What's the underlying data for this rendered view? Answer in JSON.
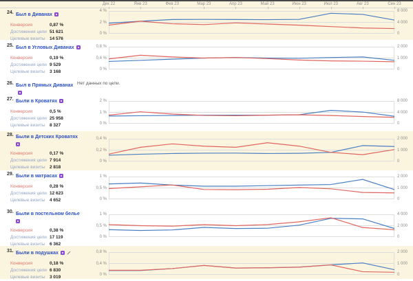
{
  "months": [
    "Дек 22",
    "Янв 23",
    "Фев 23",
    "Мар 23",
    "Апр 23",
    "Май 23",
    "Июн 23",
    "Июл 23",
    "Авг 23",
    "Сен 23"
  ],
  "metric_labels": {
    "conversion": "Конверсия",
    "reaches": "Достижения цели",
    "target_visits": "Целевые визиты"
  },
  "colors": {
    "line_red": "#e0655e",
    "line_blue": "#4a7fc1",
    "highlight_row": "#fbf4df",
    "goal_link": "#2a50c8",
    "badge_purple": "#8a4bcd"
  },
  "goals": [
    {
      "num": "24.",
      "name": "Был в Диванах",
      "badge": true,
      "pencil": false,
      "highlight": true,
      "conversion": "0,87 %",
      "reaches": "51 621",
      "target_visits": "14 576",
      "chart": {
        "type": "line",
        "left_ticks": [
          "4 %",
          "2 %",
          "0 %"
        ],
        "right_ticks": [
          "8 000",
          "4 000",
          "0"
        ],
        "left_max": 4,
        "right_max": 8000,
        "red": [
          1.5,
          2.2,
          1.75,
          1.6,
          1.9,
          1.7,
          1.5,
          1.25,
          1.0,
          0.9
        ],
        "blue": [
          3700,
          4400,
          5000,
          5050,
          5000,
          4950,
          5050,
          7200,
          6800,
          4800
        ]
      }
    },
    {
      "num": "25.",
      "name": "Был в Угловых Диванах",
      "badge": true,
      "pencil": false,
      "highlight": false,
      "conversion": "0,19 %",
      "reaches": "9 529",
      "target_visits": "3 168",
      "chart": {
        "type": "line",
        "left_ticks": [
          "0,8 %",
          "0,4 %",
          "0 %"
        ],
        "right_ticks": [
          "2 000",
          "1 000",
          "0"
        ],
        "left_max": 0.8,
        "right_max": 2000,
        "red": [
          0.37,
          0.5,
          0.44,
          0.4,
          0.42,
          0.38,
          0.33,
          0.3,
          0.29,
          0.27
        ],
        "blue": [
          700,
          800,
          900,
          1000,
          1050,
          1000,
          980,
          1050,
          1100,
          800
        ]
      }
    },
    {
      "num": "26.",
      "name": "Был в Прямых Диванах",
      "badge": true,
      "pencil": false,
      "highlight": false,
      "no_data": "Нет данных по цели.",
      "chart": null
    },
    {
      "num": "27.",
      "name": "Были в Кроватях",
      "badge": true,
      "pencil": false,
      "highlight": false,
      "conversion": "0,5 %",
      "reaches": "25 958",
      "target_visits": "8 327",
      "chart": {
        "type": "line",
        "left_ticks": [
          "2 %",
          "1 %",
          "0 %"
        ],
        "right_ticks": [
          "8 000",
          "4 000",
          "0"
        ],
        "left_max": 2,
        "right_max": 8000,
        "red": [
          0.75,
          1.05,
          0.85,
          0.73,
          0.7,
          0.75,
          0.78,
          0.72,
          0.63,
          0.56
        ],
        "blue": [
          2700,
          2800,
          2900,
          3000,
          3000,
          3000,
          3150,
          4700,
          4100,
          2600
        ]
      }
    },
    {
      "num": "28.",
      "name": "Были в Детских Кроватях",
      "badge": true,
      "pencil": false,
      "highlight": true,
      "conversion": "0,17 %",
      "reaches": "7 914",
      "target_visits": "2 818",
      "chart": {
        "type": "line",
        "left_ticks": [
          "0,4 %",
          "0,2 %",
          "0 %"
        ],
        "right_ticks": [
          "2 000",
          "1 000",
          "0"
        ],
        "left_max": 0.4,
        "right_max": 2000,
        "red": [
          0.13,
          0.25,
          0.31,
          0.27,
          0.25,
          0.33,
          0.27,
          0.16,
          0.12,
          0.21
        ],
        "blue": [
          550,
          640,
          700,
          730,
          740,
          700,
          720,
          800,
          1400,
          1320
        ]
      }
    },
    {
      "num": "29.",
      "name": "Были в матрасах",
      "badge": true,
      "pencil": false,
      "highlight": false,
      "conversion": "0,28 %",
      "reaches": "12 623",
      "target_visits": "4 652",
      "chart": {
        "type": "line",
        "left_ticks": [
          "1 %",
          "0,5 %",
          "0 %"
        ],
        "right_ticks": [
          "2 000",
          "1 000",
          "0"
        ],
        "left_max": 1,
        "right_max": 2000,
        "red": [
          0.47,
          0.55,
          0.63,
          0.43,
          0.42,
          0.44,
          0.52,
          0.46,
          0.3,
          0.28
        ],
        "blue": [
          1350,
          1430,
          1250,
          1150,
          1150,
          1200,
          1250,
          1300,
          1750,
          850
        ]
      }
    },
    {
      "num": "30.",
      "name": "Были в постельном белье",
      "badge": true,
      "pencil": false,
      "highlight": false,
      "conversion": "0,38 %",
      "reaches": "17 119",
      "target_visits": "6 362",
      "chart": {
        "type": "line",
        "left_ticks": [
          "1 %",
          "0,5 %",
          "0 %"
        ],
        "right_ticks": [
          "4 000",
          "2 000",
          "0"
        ],
        "left_max": 1,
        "right_max": 4000,
        "red": [
          0.55,
          0.5,
          0.48,
          0.55,
          0.5,
          0.55,
          0.67,
          0.85,
          0.42,
          0.32
        ],
        "blue": [
          1300,
          1150,
          1250,
          1700,
          1500,
          1550,
          2100,
          3300,
          3200,
          1500
        ]
      }
    },
    {
      "num": "31.",
      "name": "Были в подушках",
      "badge": true,
      "pencil": true,
      "highlight": true,
      "conversion": "0,18 %",
      "reaches": "6 830",
      "target_visits": "3 019",
      "chart": {
        "type": "line",
        "left_ticks": [
          "0,8 %",
          "0,4 %",
          "0 %"
        ],
        "right_ticks": [
          "2 000",
          "1 000",
          "0"
        ],
        "left_max": 0.8,
        "right_max": 2000,
        "red": [
          0.16,
          0.16,
          0.22,
          0.33,
          0.24,
          0.25,
          0.27,
          0.35,
          0.11,
          0.09
        ],
        "blue": [
          380,
          380,
          550,
          830,
          600,
          620,
          680,
          880,
          1050,
          450
        ]
      }
    }
  ]
}
